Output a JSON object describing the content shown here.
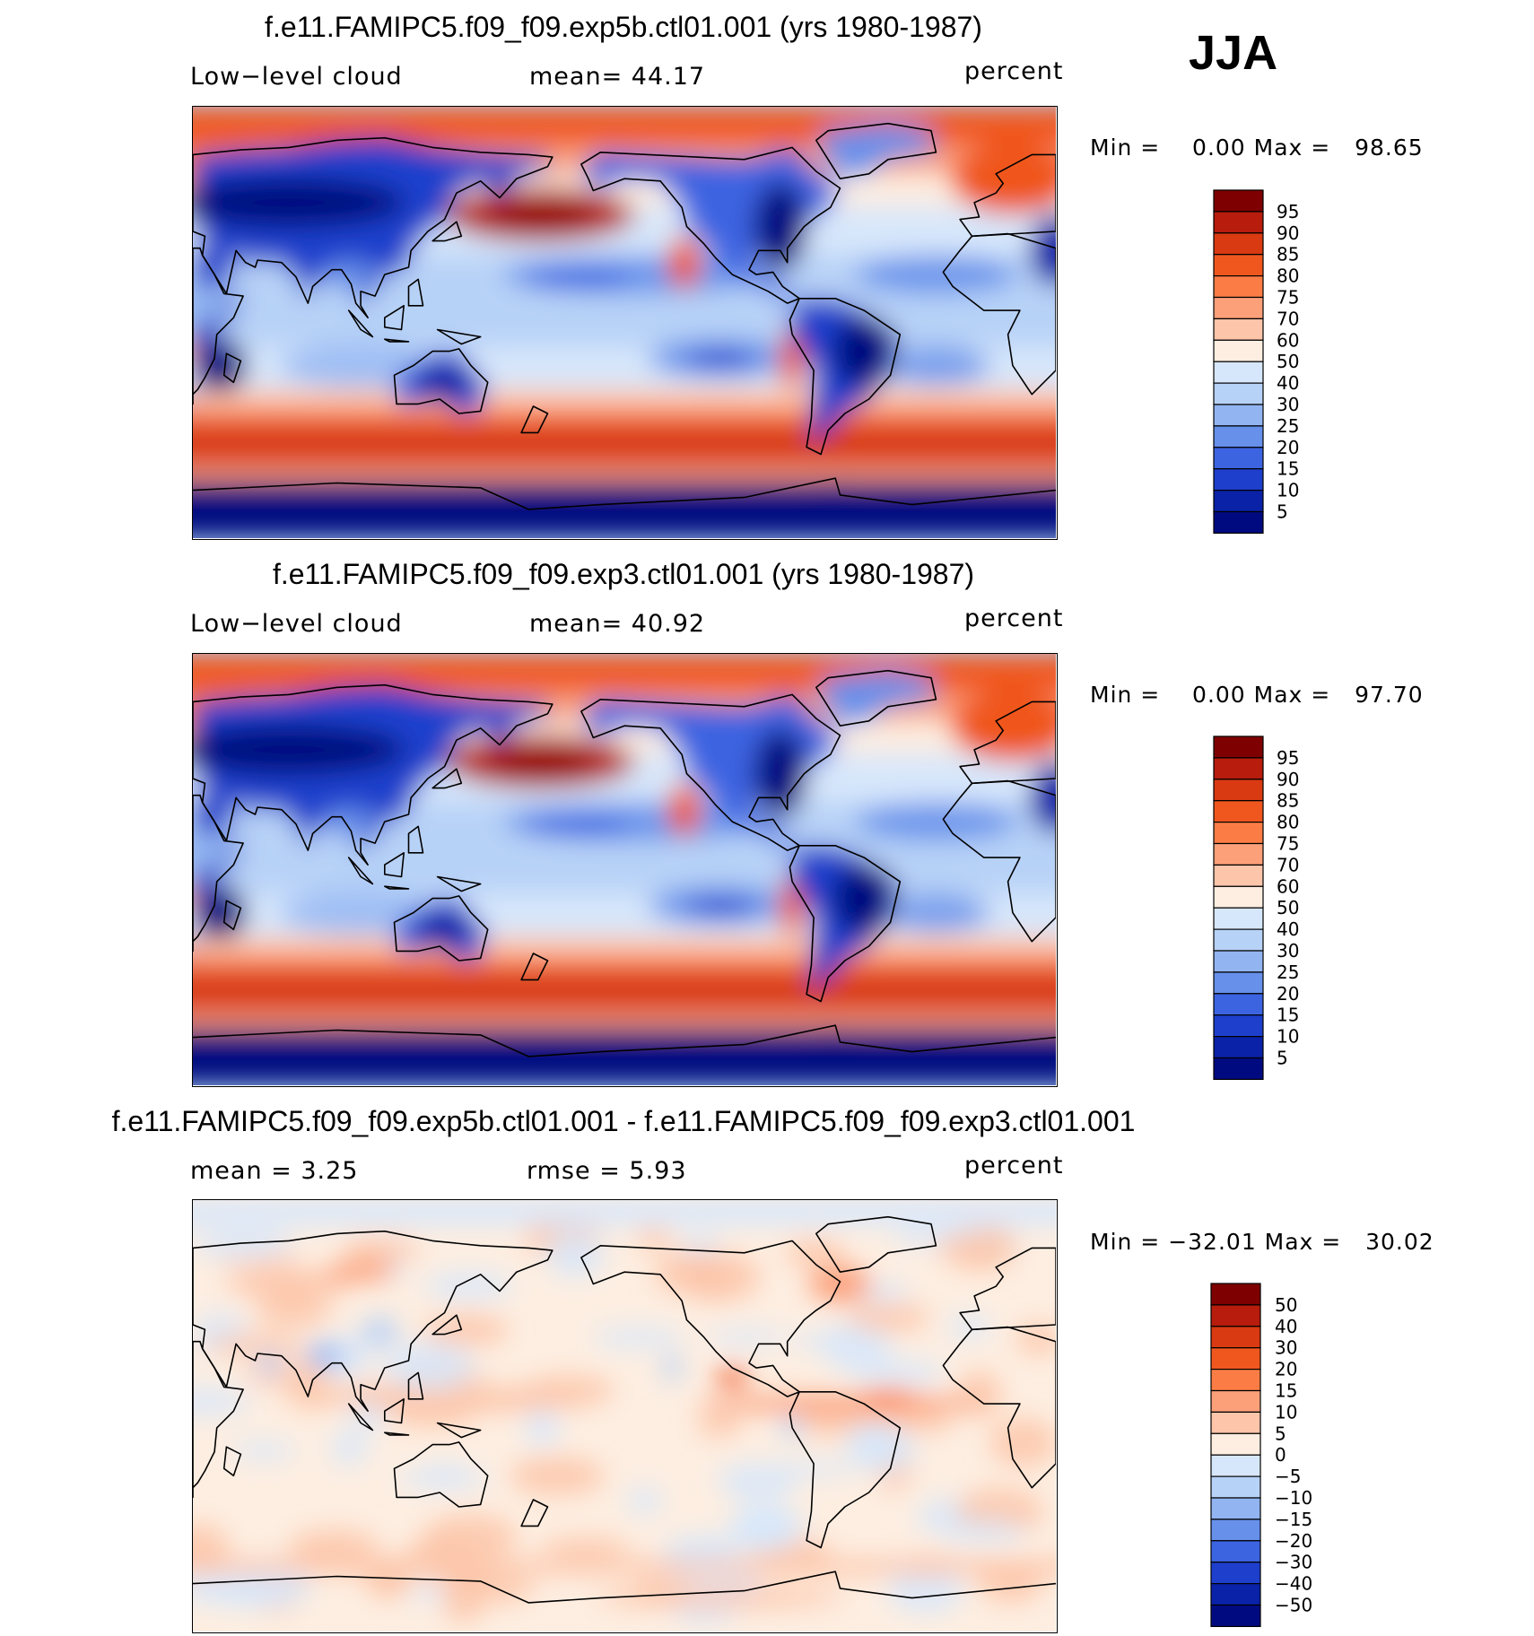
{
  "season": "JJA",
  "panels": [
    {
      "id": "p1",
      "title": "f.e11.FAMIPC5.f09_f09.exp5b.ctl01.001 (yrs 1980-1987)",
      "left_label": "Low−level cloud",
      "stat1": "mean=   44.17",
      "stat2": "",
      "units": "percent",
      "minmax": "Min =    0.00 Max =   98.65",
      "field": "absolute",
      "colorbar_labels": [
        "95",
        "90",
        "85",
        "80",
        "75",
        "70",
        "60",
        "50",
        "40",
        "30",
        "25",
        "20",
        "15",
        "10",
        "5"
      ]
    },
    {
      "id": "p2",
      "title": "f.e11.FAMIPC5.f09_f09.exp3.ctl01.001 (yrs 1980-1987)",
      "left_label": "Low−level cloud",
      "stat1": "mean=   40.92",
      "stat2": "",
      "units": "percent",
      "minmax": "Min =    0.00 Max =   97.70",
      "field": "absolute",
      "colorbar_labels": [
        "95",
        "90",
        "85",
        "80",
        "75",
        "70",
        "60",
        "50",
        "40",
        "30",
        "25",
        "20",
        "15",
        "10",
        "5"
      ]
    },
    {
      "id": "p3",
      "title": "f.e11.FAMIPC5.f09_f09.exp5b.ctl01.001 - f.e11.FAMIPC5.f09_f09.exp3.ctl01.001",
      "left_label": "mean =    3.25",
      "stat1": "rmse =    5.93",
      "stat2": "",
      "units": "percent",
      "minmax": "Min = −32.01 Max =   30.02",
      "field": "difference",
      "colorbar_labels": [
        "50",
        "40",
        "30",
        "20",
        "15",
        "10",
        "5",
        "0",
        "−5",
        "−10",
        "−15",
        "−20",
        "−30",
        "−40",
        "−50"
      ]
    }
  ],
  "colors": {
    "abs_scale": [
      "#7f0000",
      "#b71c0c",
      "#d93a12",
      "#f0571f",
      "#fb7d45",
      "#fca07a",
      "#fdc5a9",
      "#fdeee1",
      "#d7e7fb",
      "#b7d2f7",
      "#92b5f2",
      "#6690ea",
      "#3c64e1",
      "#1d3fcc",
      "#0a22a8",
      "#000a80"
    ],
    "diff_scale": [
      "#7f0000",
      "#b71c0c",
      "#d93a12",
      "#f0571f",
      "#fb7d45",
      "#fca07a",
      "#fdc5a9",
      "#fdeee1",
      "#d7e7fb",
      "#b7d2f7",
      "#92b5f2",
      "#6690ea",
      "#3c64e1",
      "#1d3fcc",
      "#0a22a8",
      "#000a80"
    ]
  }
}
